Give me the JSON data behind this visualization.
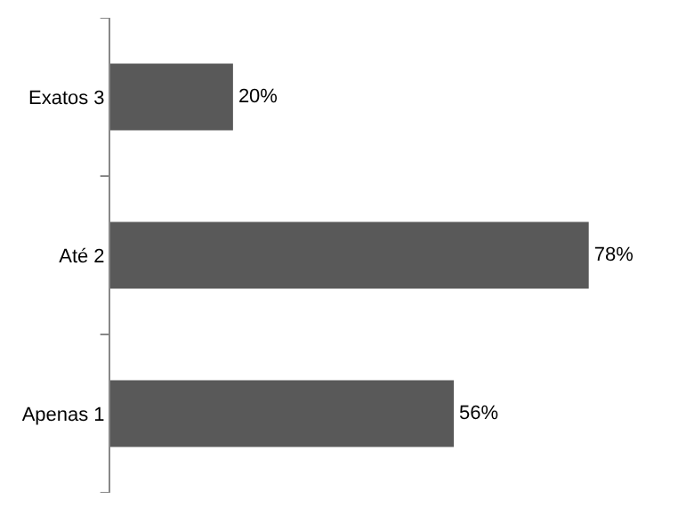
{
  "chart_data": {
    "type": "bar",
    "orientation": "horizontal",
    "categories": [
      "Exatos 3",
      "Até 2",
      "Apenas 1"
    ],
    "values": [
      20,
      78,
      56
    ],
    "value_labels": [
      "20%",
      "78%",
      "56%"
    ],
    "color": "#595959",
    "legend": false
  }
}
